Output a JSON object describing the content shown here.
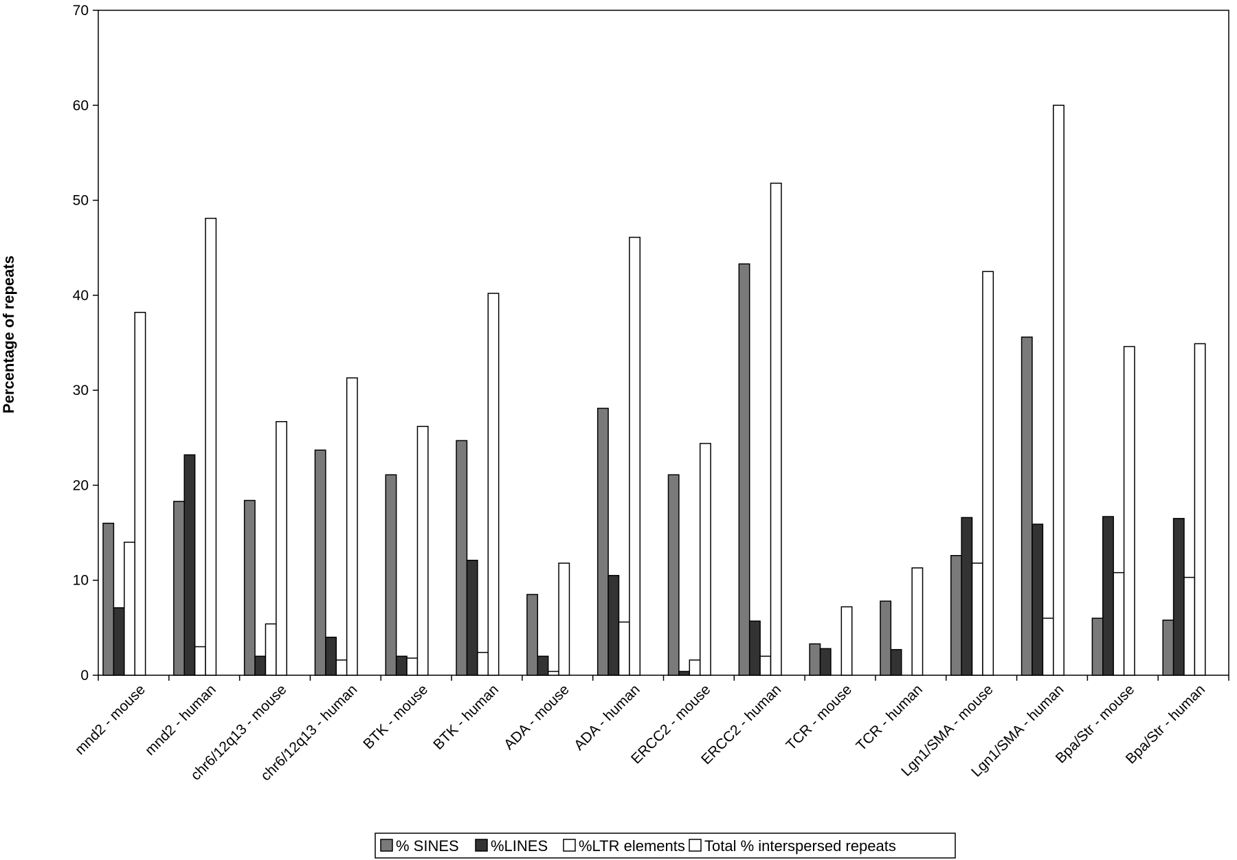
{
  "chart_data": {
    "type": "bar",
    "xlabel": "",
    "ylabel": "Percentage of repeats",
    "ylim": [
      0,
      70
    ],
    "yticks": [
      0,
      10,
      20,
      30,
      40,
      50,
      60,
      70
    ],
    "grid": false,
    "legend_position": "bottom",
    "categories": [
      "mnd2 - mouse",
      "mnd2 - human",
      "chr6/12q13 - mouse",
      "chr6/12q13 - human",
      "BTK - mouse",
      "BTK - human",
      "ADA - mouse",
      "ADA - human",
      "ERCC2 - mouse",
      "ERCC2 - human",
      "TCR - mouse",
      "TCR - human",
      "Lgn1/SMA - mouse",
      "Lgn1/SMA - human",
      "Bpa/Str - mouse",
      "Bpa/Str - human"
    ],
    "series": [
      {
        "name": "% SINES",
        "color": "#7a7a7a",
        "values": [
          16.0,
          18.3,
          18.4,
          23.7,
          21.1,
          24.7,
          8.5,
          28.1,
          21.1,
          43.3,
          3.3,
          7.8,
          12.6,
          35.6,
          6.0,
          5.8
        ]
      },
      {
        "name": "%LINES",
        "color": "#333333",
        "values": [
          7.1,
          23.2,
          2.0,
          4.0,
          2.0,
          12.1,
          2.0,
          10.5,
          0.4,
          5.7,
          2.8,
          2.7,
          16.6,
          15.9,
          16.7,
          16.5
        ]
      },
      {
        "name": "%LTR elements",
        "color": "#ffffff",
        "values": [
          14.0,
          3.0,
          5.4,
          1.6,
          1.8,
          2.4,
          0.4,
          5.6,
          1.6,
          2.0,
          0,
          0,
          11.8,
          6.0,
          10.8,
          10.3
        ]
      },
      {
        "name": "Total % interspersed repeats",
        "color": "#ffffff",
        "values": [
          38.2,
          48.1,
          26.7,
          31.3,
          26.2,
          40.2,
          11.8,
          46.1,
          24.4,
          51.8,
          7.2,
          11.3,
          42.5,
          60.0,
          34.6,
          34.9
        ]
      }
    ]
  }
}
